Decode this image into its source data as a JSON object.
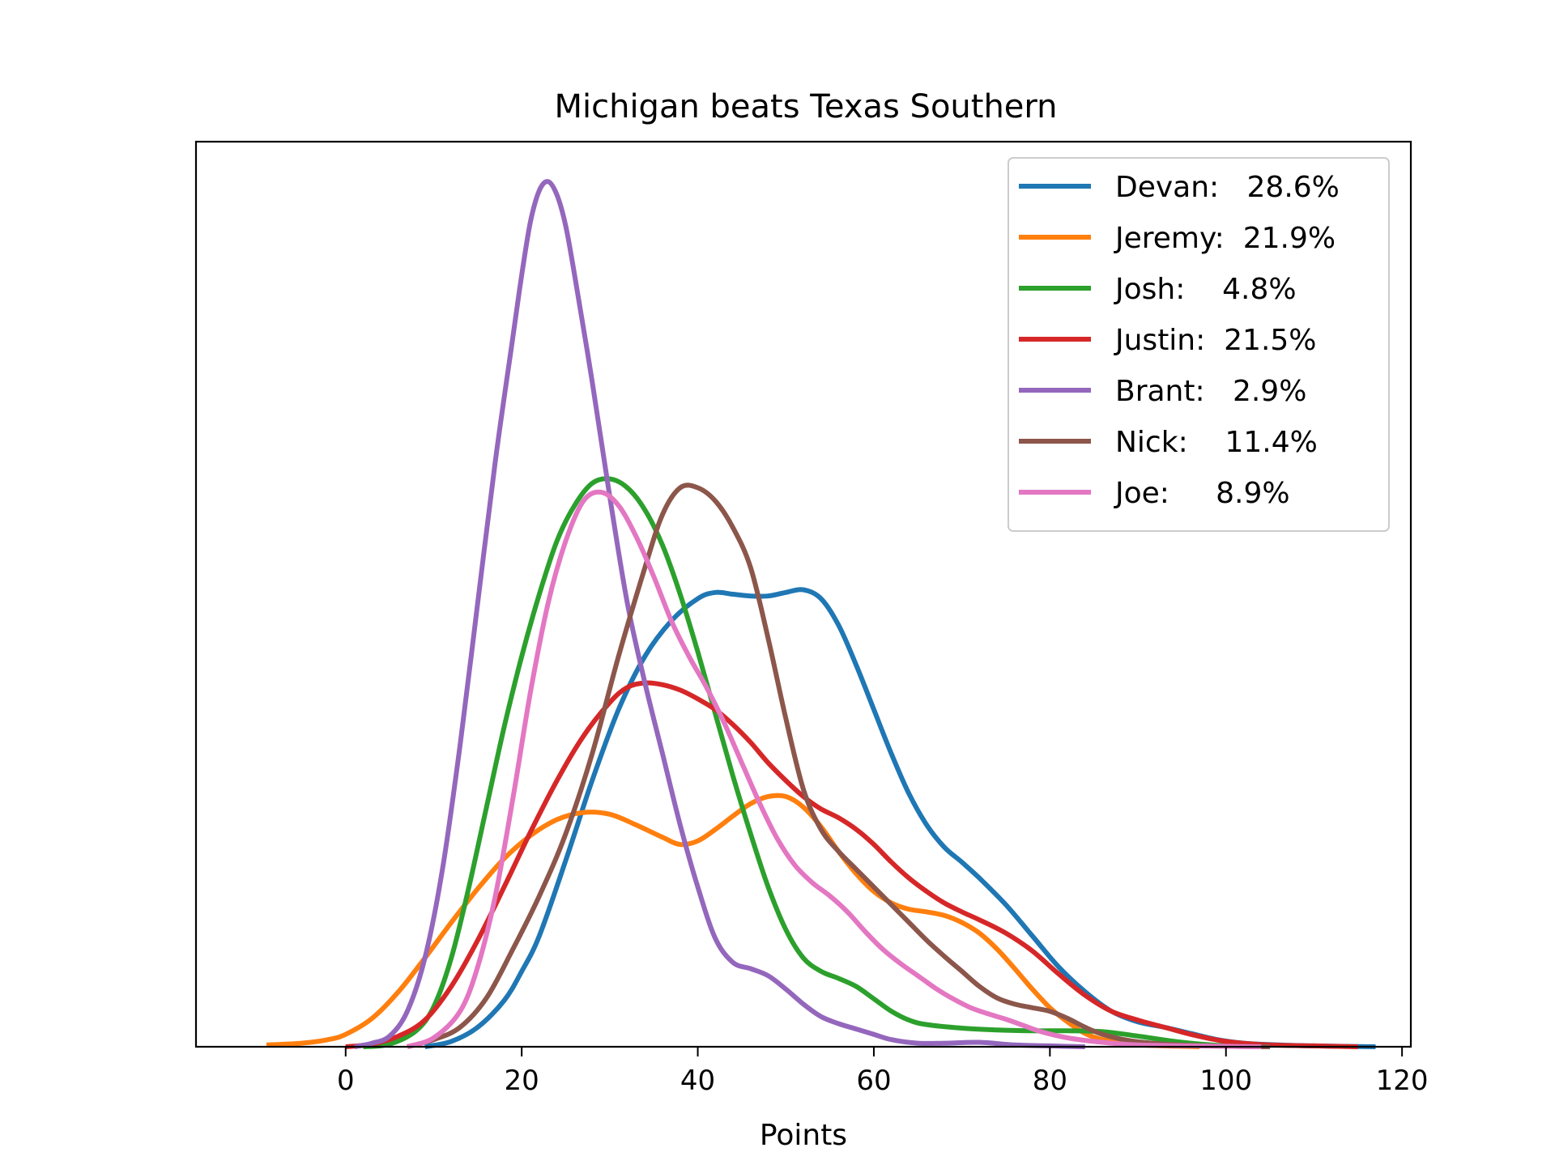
{
  "chart_data": {
    "type": "line",
    "title": "Michigan beats Texas Southern",
    "xlabel": "Points",
    "ylabel": "",
    "xlim": [
      -17,
      121
    ],
    "ylim": [
      0,
      1.02
    ],
    "xticks": [
      0,
      20,
      40,
      60,
      80,
      100,
      120
    ],
    "yticks_visible": false,
    "grid": false,
    "legend_position": "top-right",
    "series": [
      {
        "name": "Devan:   28.6%",
        "color": "#1f77b4",
        "points": [
          [
            9,
            0
          ],
          [
            12,
            0.006
          ],
          [
            15,
            0.022
          ],
          [
            18,
            0.052
          ],
          [
            20,
            0.085
          ],
          [
            22,
            0.125
          ],
          [
            25,
            0.21
          ],
          [
            28,
            0.3
          ],
          [
            31,
            0.38
          ],
          [
            34,
            0.44
          ],
          [
            37,
            0.48
          ],
          [
            40,
            0.505
          ],
          [
            42,
            0.512
          ],
          [
            44,
            0.51
          ],
          [
            46,
            0.508
          ],
          [
            48,
            0.508
          ],
          [
            50,
            0.512
          ],
          [
            52,
            0.515
          ],
          [
            54,
            0.505
          ],
          [
            56,
            0.475
          ],
          [
            58,
            0.43
          ],
          [
            60,
            0.38
          ],
          [
            62,
            0.33
          ],
          [
            64,
            0.285
          ],
          [
            66,
            0.25
          ],
          [
            68,
            0.225
          ],
          [
            70,
            0.208
          ],
          [
            72,
            0.19
          ],
          [
            75,
            0.16
          ],
          [
            78,
            0.125
          ],
          [
            81,
            0.09
          ],
          [
            84,
            0.062
          ],
          [
            87,
            0.04
          ],
          [
            90,
            0.028
          ],
          [
            93,
            0.022
          ],
          [
            96,
            0.015
          ],
          [
            99,
            0.008
          ],
          [
            102,
            0.004
          ],
          [
            106,
            0.002
          ],
          [
            110,
            0.001
          ],
          [
            117,
            0.0
          ]
        ]
      },
      {
        "name": "Jeremy:  21.9%",
        "color": "#ff7f0e",
        "points": [
          [
            -9,
            0.002
          ],
          [
            -5,
            0.004
          ],
          [
            -2,
            0.008
          ],
          [
            0,
            0.014
          ],
          [
            3,
            0.032
          ],
          [
            6,
            0.062
          ],
          [
            9,
            0.1
          ],
          [
            12,
            0.14
          ],
          [
            15,
            0.178
          ],
          [
            18,
            0.212
          ],
          [
            21,
            0.238
          ],
          [
            24,
            0.256
          ],
          [
            27,
            0.264
          ],
          [
            30,
            0.262
          ],
          [
            33,
            0.25
          ],
          [
            36,
            0.236
          ],
          [
            38,
            0.228
          ],
          [
            40,
            0.232
          ],
          [
            42,
            0.245
          ],
          [
            44,
            0.26
          ],
          [
            46,
            0.274
          ],
          [
            48,
            0.282
          ],
          [
            50,
            0.282
          ],
          [
            52,
            0.27
          ],
          [
            54,
            0.248
          ],
          [
            56,
            0.22
          ],
          [
            58,
            0.195
          ],
          [
            60,
            0.175
          ],
          [
            62,
            0.162
          ],
          [
            64,
            0.155
          ],
          [
            66,
            0.152
          ],
          [
            68,
            0.148
          ],
          [
            70,
            0.14
          ],
          [
            72,
            0.128
          ],
          [
            74,
            0.11
          ],
          [
            76,
            0.088
          ],
          [
            78,
            0.065
          ],
          [
            80,
            0.044
          ],
          [
            82,
            0.028
          ],
          [
            84,
            0.015
          ],
          [
            86,
            0.008
          ],
          [
            89,
            0.003
          ],
          [
            93,
            0.001
          ],
          [
            97,
            0.0
          ]
        ]
      },
      {
        "name": "Josh:    4.8%",
        "color": "#2ca02c",
        "points": [
          [
            2,
            0
          ],
          [
            5,
            0.003
          ],
          [
            8,
            0.018
          ],
          [
            10,
            0.045
          ],
          [
            12,
            0.1
          ],
          [
            14,
            0.18
          ],
          [
            16,
            0.27
          ],
          [
            18,
            0.36
          ],
          [
            20,
            0.44
          ],
          [
            22,
            0.51
          ],
          [
            24,
            0.57
          ],
          [
            26,
            0.61
          ],
          [
            28,
            0.635
          ],
          [
            30,
            0.64
          ],
          [
            32,
            0.63
          ],
          [
            34,
            0.605
          ],
          [
            36,
            0.565
          ],
          [
            38,
            0.51
          ],
          [
            40,
            0.445
          ],
          [
            42,
            0.375
          ],
          [
            44,
            0.305
          ],
          [
            46,
            0.24
          ],
          [
            48,
            0.18
          ],
          [
            50,
            0.132
          ],
          [
            52,
            0.1
          ],
          [
            54,
            0.085
          ],
          [
            56,
            0.077
          ],
          [
            58,
            0.068
          ],
          [
            60,
            0.054
          ],
          [
            62,
            0.04
          ],
          [
            64,
            0.03
          ],
          [
            66,
            0.025
          ],
          [
            70,
            0.021
          ],
          [
            74,
            0.019
          ],
          [
            78,
            0.018
          ],
          [
            82,
            0.018
          ],
          [
            86,
            0.017
          ],
          [
            90,
            0.012
          ],
          [
            95,
            0.005
          ],
          [
            100,
            0.001
          ],
          [
            105,
            0.0
          ]
        ]
      },
      {
        "name": "Justin:  21.5%",
        "color": "#d62728",
        "points": [
          [
            0,
            0
          ],
          [
            3,
            0.003
          ],
          [
            6,
            0.012
          ],
          [
            9,
            0.03
          ],
          [
            12,
            0.068
          ],
          [
            15,
            0.12
          ],
          [
            18,
            0.18
          ],
          [
            21,
            0.242
          ],
          [
            24,
            0.3
          ],
          [
            27,
            0.35
          ],
          [
            30,
            0.388
          ],
          [
            32,
            0.405
          ],
          [
            34,
            0.41
          ],
          [
            36,
            0.408
          ],
          [
            38,
            0.402
          ],
          [
            40,
            0.392
          ],
          [
            42,
            0.38
          ],
          [
            44,
            0.363
          ],
          [
            46,
            0.343
          ],
          [
            48,
            0.32
          ],
          [
            50,
            0.3
          ],
          [
            52,
            0.282
          ],
          [
            54,
            0.268
          ],
          [
            56,
            0.258
          ],
          [
            58,
            0.245
          ],
          [
            60,
            0.228
          ],
          [
            62,
            0.208
          ],
          [
            64,
            0.19
          ],
          [
            66,
            0.175
          ],
          [
            68,
            0.162
          ],
          [
            70,
            0.152
          ],
          [
            72,
            0.143
          ],
          [
            75,
            0.128
          ],
          [
            78,
            0.108
          ],
          [
            81,
            0.082
          ],
          [
            84,
            0.058
          ],
          [
            87,
            0.04
          ],
          [
            90,
            0.03
          ],
          [
            93,
            0.022
          ],
          [
            96,
            0.014
          ],
          [
            100,
            0.006
          ],
          [
            105,
            0.002
          ],
          [
            110,
            0.001
          ],
          [
            115,
            0.0
          ]
        ]
      },
      {
        "name": "Brant:   2.9%",
        "color": "#9467bd",
        "points": [
          [
            1,
            0
          ],
          [
            3,
            0.004
          ],
          [
            5,
            0.012
          ],
          [
            7,
            0.04
          ],
          [
            9,
            0.1
          ],
          [
            11,
            0.2
          ],
          [
            13,
            0.34
          ],
          [
            15,
            0.5
          ],
          [
            17,
            0.66
          ],
          [
            19,
            0.8
          ],
          [
            20,
            0.87
          ],
          [
            21,
            0.93
          ],
          [
            22,
            0.965
          ],
          [
            23,
            0.975
          ],
          [
            24,
            0.96
          ],
          [
            25,
            0.925
          ],
          [
            26,
            0.87
          ],
          [
            28,
            0.75
          ],
          [
            30,
            0.62
          ],
          [
            32,
            0.5
          ],
          [
            34,
            0.41
          ],
          [
            36,
            0.33
          ],
          [
            38,
            0.25
          ],
          [
            40,
            0.18
          ],
          [
            42,
            0.122
          ],
          [
            44,
            0.095
          ],
          [
            46,
            0.088
          ],
          [
            48,
            0.08
          ],
          [
            50,
            0.065
          ],
          [
            52,
            0.048
          ],
          [
            54,
            0.034
          ],
          [
            56,
            0.026
          ],
          [
            58,
            0.02
          ],
          [
            60,
            0.014
          ],
          [
            62,
            0.008
          ],
          [
            65,
            0.004
          ],
          [
            68,
            0.004
          ],
          [
            72,
            0.005
          ],
          [
            76,
            0.002
          ],
          [
            80,
            0.001
          ],
          [
            84,
            0.0
          ]
        ]
      },
      {
        "name": "Nick:    11.4%",
        "color": "#8c564b",
        "points": [
          [
            7,
            0
          ],
          [
            10,
            0.008
          ],
          [
            13,
            0.022
          ],
          [
            16,
            0.055
          ],
          [
            19,
            0.11
          ],
          [
            22,
            0.17
          ],
          [
            25,
            0.24
          ],
          [
            28,
            0.33
          ],
          [
            31,
            0.44
          ],
          [
            34,
            0.54
          ],
          [
            36,
            0.6
          ],
          [
            38,
            0.63
          ],
          [
            40,
            0.63
          ],
          [
            42,
            0.615
          ],
          [
            44,
            0.585
          ],
          [
            46,
            0.54
          ],
          [
            48,
            0.46
          ],
          [
            50,
            0.37
          ],
          [
            52,
            0.29
          ],
          [
            54,
            0.245
          ],
          [
            56,
            0.22
          ],
          [
            58,
            0.2
          ],
          [
            60,
            0.18
          ],
          [
            62,
            0.16
          ],
          [
            64,
            0.14
          ],
          [
            66,
            0.12
          ],
          [
            68,
            0.102
          ],
          [
            70,
            0.085
          ],
          [
            72,
            0.068
          ],
          [
            74,
            0.055
          ],
          [
            76,
            0.048
          ],
          [
            78,
            0.044
          ],
          [
            80,
            0.04
          ],
          [
            82,
            0.032
          ],
          [
            84,
            0.022
          ],
          [
            86,
            0.014
          ],
          [
            89,
            0.007
          ],
          [
            93,
            0.003
          ],
          [
            98,
            0.001
          ],
          [
            105,
            0.0
          ]
        ]
      },
      {
        "name": "Joe:     8.9%",
        "color": "#e377c2",
        "points": [
          [
            7,
            0
          ],
          [
            10,
            0.01
          ],
          [
            13,
            0.04
          ],
          [
            15,
            0.09
          ],
          [
            17,
            0.17
          ],
          [
            19,
            0.28
          ],
          [
            21,
            0.4
          ],
          [
            23,
            0.5
          ],
          [
            25,
            0.57
          ],
          [
            27,
            0.615
          ],
          [
            29,
            0.625
          ],
          [
            31,
            0.61
          ],
          [
            33,
            0.575
          ],
          [
            35,
            0.53
          ],
          [
            37,
            0.48
          ],
          [
            39,
            0.44
          ],
          [
            41,
            0.405
          ],
          [
            43,
            0.365
          ],
          [
            45,
            0.32
          ],
          [
            47,
            0.275
          ],
          [
            49,
            0.235
          ],
          [
            51,
            0.205
          ],
          [
            53,
            0.185
          ],
          [
            55,
            0.17
          ],
          [
            57,
            0.152
          ],
          [
            59,
            0.13
          ],
          [
            61,
            0.11
          ],
          [
            63,
            0.094
          ],
          [
            65,
            0.08
          ],
          [
            67,
            0.066
          ],
          [
            69,
            0.054
          ],
          [
            71,
            0.044
          ],
          [
            73,
            0.037
          ],
          [
            75,
            0.031
          ],
          [
            77,
            0.024
          ],
          [
            79,
            0.017
          ],
          [
            82,
            0.01
          ],
          [
            86,
            0.005
          ],
          [
            90,
            0.002
          ],
          [
            96,
            0.001
          ],
          [
            104,
            0.0
          ]
        ]
      }
    ]
  }
}
